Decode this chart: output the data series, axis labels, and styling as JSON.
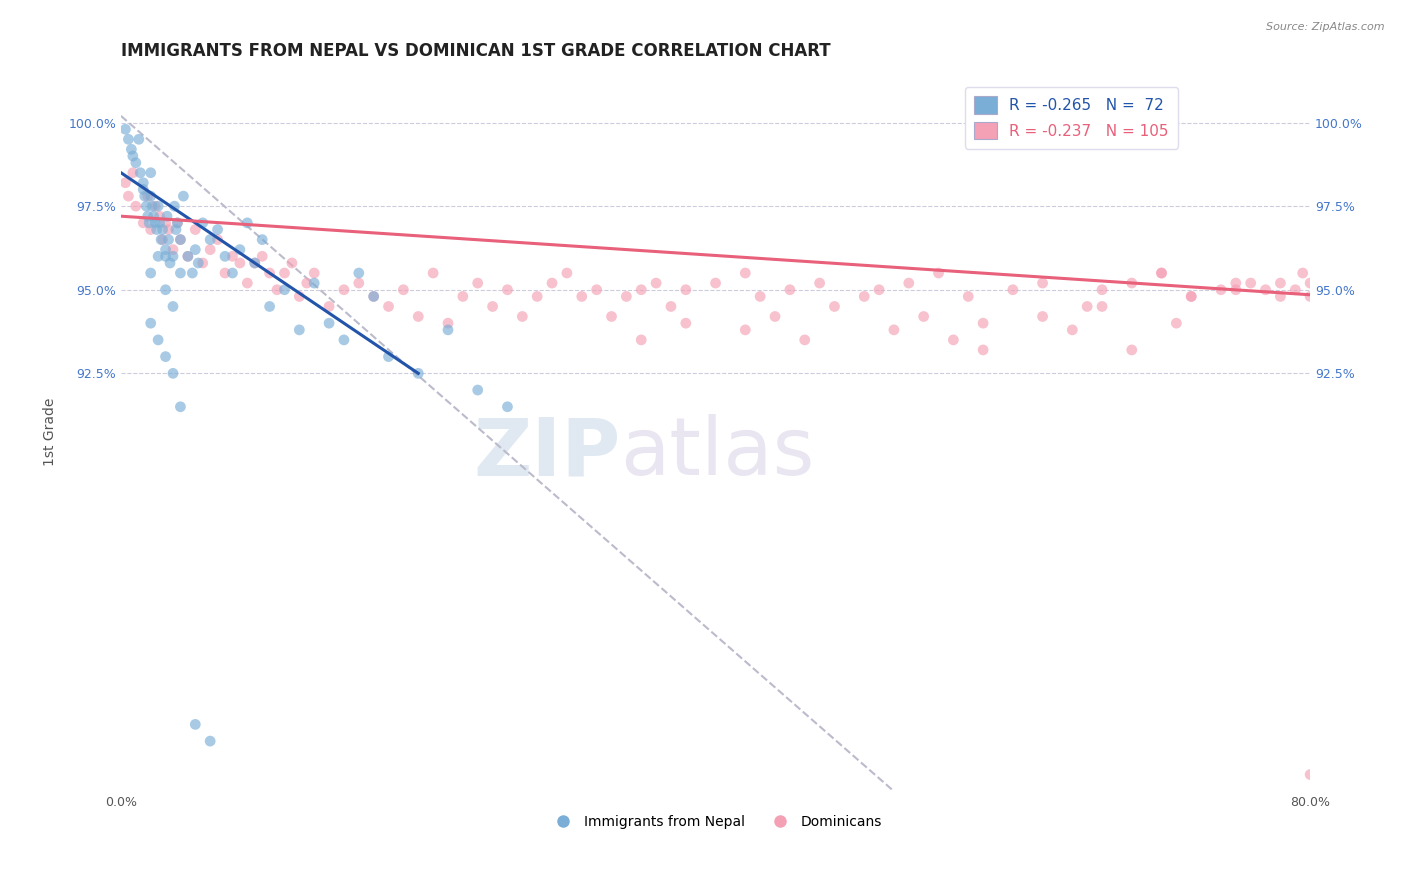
{
  "title": "IMMIGRANTS FROM NEPAL VS DOMINICAN 1ST GRADE CORRELATION CHART",
  "source": "Source: ZipAtlas.com",
  "ylabel": "1st Grade",
  "xlim": [
    0.0,
    80.0
  ],
  "ylim": [
    80.0,
    101.5
  ],
  "nepal_color": "#7aaed6",
  "dominican_color": "#f4a0b5",
  "nepal_line_color": "#2255aa",
  "dominican_line_color": "#e8607a",
  "dashed_line_color": "#bbbbcc",
  "nepal_line_x": [
    0.0,
    20.0
  ],
  "nepal_line_y": [
    98.5,
    92.5
  ],
  "dominican_line_x": [
    0.0,
    80.0
  ],
  "dominican_line_y": [
    97.2,
    94.85
  ],
  "dashed_line_x": [
    0.0,
    52.0
  ],
  "dashed_line_y": [
    100.2,
    80.0
  ],
  "watermark_zip": "ZIP",
  "watermark_atlas": "atlas",
  "ytick_vals": [
    92.5,
    95.0,
    97.5,
    100.0
  ],
  "ytick_labels": [
    "92.5%",
    "95.0%",
    "97.5%",
    "100.0%"
  ],
  "ytick_color": "#4477cc",
  "grid_vals": [
    92.5,
    95.0,
    97.5,
    100.0
  ],
  "title_fontsize": 12,
  "axis_fontsize": 9,
  "legend_fontsize": 11,
  "nepal_scatter_x": [
    0.3,
    0.5,
    0.7,
    0.8,
    1.0,
    1.2,
    1.3,
    1.5,
    1.5,
    1.6,
    1.7,
    1.8,
    1.9,
    2.0,
    2.0,
    2.1,
    2.2,
    2.3,
    2.4,
    2.5,
    2.6,
    2.7,
    2.8,
    3.0,
    3.0,
    3.1,
    3.2,
    3.3,
    3.5,
    3.6,
    3.7,
    3.8,
    4.0,
    4.2,
    4.5,
    4.8,
    5.0,
    5.2,
    5.5,
    6.0,
    6.5,
    7.0,
    7.5,
    8.0,
    8.5,
    9.0,
    9.5,
    10.0,
    11.0,
    12.0,
    13.0,
    14.0,
    15.0,
    16.0,
    17.0,
    18.0,
    20.0,
    22.0,
    24.0,
    26.0,
    2.0,
    3.5,
    3.0,
    2.5,
    4.0,
    2.0,
    2.5,
    3.0,
    3.5,
    4.0,
    5.0,
    6.0
  ],
  "nepal_scatter_y": [
    99.8,
    99.5,
    99.2,
    99.0,
    98.8,
    99.5,
    98.5,
    98.2,
    98.0,
    97.8,
    97.5,
    97.2,
    97.0,
    98.5,
    97.8,
    97.5,
    97.2,
    97.0,
    96.8,
    97.5,
    97.0,
    96.5,
    96.8,
    96.2,
    96.0,
    97.2,
    96.5,
    95.8,
    96.0,
    97.5,
    96.8,
    97.0,
    96.5,
    97.8,
    96.0,
    95.5,
    96.2,
    95.8,
    97.0,
    96.5,
    96.8,
    96.0,
    95.5,
    96.2,
    97.0,
    95.8,
    96.5,
    94.5,
    95.0,
    93.8,
    95.2,
    94.0,
    93.5,
    95.5,
    94.8,
    93.0,
    92.5,
    93.8,
    92.0,
    91.5,
    95.5,
    94.5,
    95.0,
    96.0,
    95.5,
    94.0,
    93.5,
    93.0,
    92.5,
    91.5,
    82.0,
    81.5
  ],
  "dominican_scatter_x": [
    0.3,
    0.5,
    0.8,
    1.0,
    1.5,
    1.8,
    2.0,
    2.3,
    2.6,
    2.8,
    3.0,
    3.2,
    3.5,
    3.8,
    4.0,
    4.5,
    5.0,
    5.5,
    6.0,
    6.5,
    7.0,
    7.5,
    8.0,
    8.5,
    9.0,
    9.5,
    10.0,
    10.5,
    11.0,
    11.5,
    12.0,
    12.5,
    13.0,
    14.0,
    15.0,
    16.0,
    17.0,
    18.0,
    19.0,
    20.0,
    21.0,
    22.0,
    23.0,
    24.0,
    25.0,
    26.0,
    27.0,
    28.0,
    29.0,
    30.0,
    31.0,
    32.0,
    33.0,
    34.0,
    35.0,
    36.0,
    37.0,
    38.0,
    40.0,
    42.0,
    43.0,
    45.0,
    47.0,
    50.0,
    51.0,
    53.0,
    55.0,
    57.0,
    60.0,
    62.0,
    65.0,
    66.0,
    68.0,
    70.0,
    72.0,
    75.0,
    78.0,
    79.5,
    80.0,
    35.0,
    38.0,
    42.0,
    44.0,
    46.0,
    48.0,
    52.0,
    54.0,
    56.0,
    58.0,
    70.0,
    72.0,
    75.0,
    77.0,
    58.0,
    62.0,
    64.0,
    66.0,
    68.0,
    71.0,
    74.0,
    76.0,
    78.0,
    79.0,
    80.0,
    80.0
  ],
  "dominican_scatter_y": [
    98.2,
    97.8,
    98.5,
    97.5,
    97.0,
    97.8,
    96.8,
    97.5,
    97.2,
    96.5,
    97.0,
    96.8,
    96.2,
    97.0,
    96.5,
    96.0,
    96.8,
    95.8,
    96.2,
    96.5,
    95.5,
    96.0,
    95.8,
    95.2,
    95.8,
    96.0,
    95.5,
    95.0,
    95.5,
    95.8,
    94.8,
    95.2,
    95.5,
    94.5,
    95.0,
    95.2,
    94.8,
    94.5,
    95.0,
    94.2,
    95.5,
    94.0,
    94.8,
    95.2,
    94.5,
    95.0,
    94.2,
    94.8,
    95.2,
    95.5,
    94.8,
    95.0,
    94.2,
    94.8,
    95.0,
    95.2,
    94.5,
    95.0,
    95.2,
    95.5,
    94.8,
    95.0,
    95.2,
    94.8,
    95.0,
    95.2,
    95.5,
    94.8,
    95.0,
    95.2,
    94.5,
    95.0,
    95.2,
    95.5,
    94.8,
    95.0,
    95.2,
    95.5,
    94.8,
    93.5,
    94.0,
    93.8,
    94.2,
    93.5,
    94.5,
    93.8,
    94.2,
    93.5,
    94.0,
    95.5,
    94.8,
    95.2,
    95.0,
    93.2,
    94.2,
    93.8,
    94.5,
    93.2,
    94.0,
    95.0,
    95.2,
    94.8,
    95.0,
    95.2,
    80.5
  ]
}
